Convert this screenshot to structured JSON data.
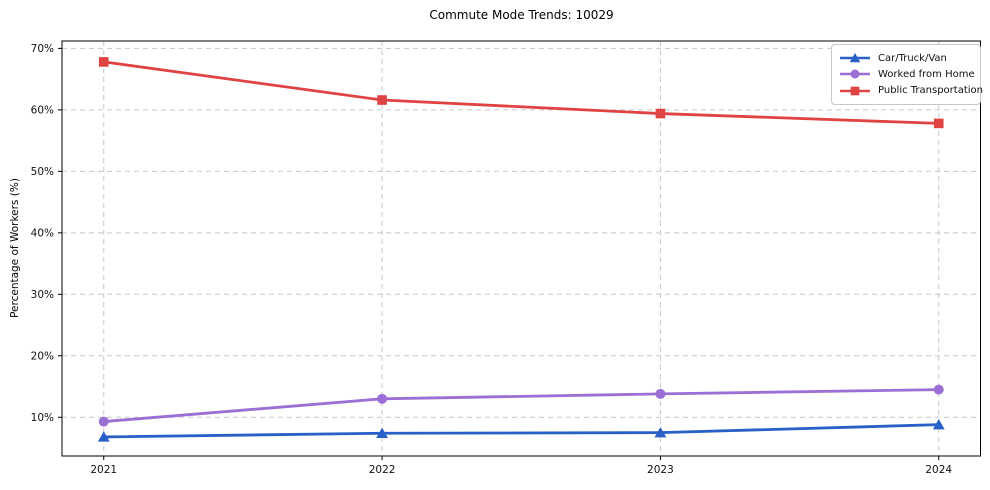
{
  "figure": {
    "background_color": "#ffffff",
    "grid_color": "#c8c8c8",
    "spine_color": "#000000"
  },
  "chart_data": {
    "type": "line",
    "title": "Commute Mode Trends: 10029",
    "xlabel": "",
    "ylabel": "Percentage of Workers (%)",
    "x": [
      2021,
      2022,
      2023,
      2024
    ],
    "x_tick_labels": [
      "2021",
      "2022",
      "2023",
      "2024"
    ],
    "y_ticks": [
      10,
      20,
      30,
      40,
      50,
      60,
      70
    ],
    "y_tick_labels": [
      "10%",
      "20%",
      "30%",
      "40%",
      "50%",
      "60%",
      "70%"
    ],
    "xlim": [
      2020.85,
      2024.15
    ],
    "ylim": [
      3.7,
      71.2
    ],
    "grid": true,
    "legend_position": "upper right",
    "series": [
      {
        "name": "Car/Truck/Van",
        "color": "#2860c8",
        "marker": "triangle",
        "values": [
          6.8,
          7.4,
          7.5,
          8.8
        ]
      },
      {
        "name": "Worked from Home",
        "color": "#9c6fd6",
        "marker": "circle",
        "values": [
          9.3,
          13.0,
          13.8,
          14.5
        ]
      },
      {
        "name": "Public Transportation",
        "color": "#df4442",
        "marker": "square",
        "values": [
          67.8,
          61.6,
          59.4,
          57.8
        ]
      }
    ]
  }
}
